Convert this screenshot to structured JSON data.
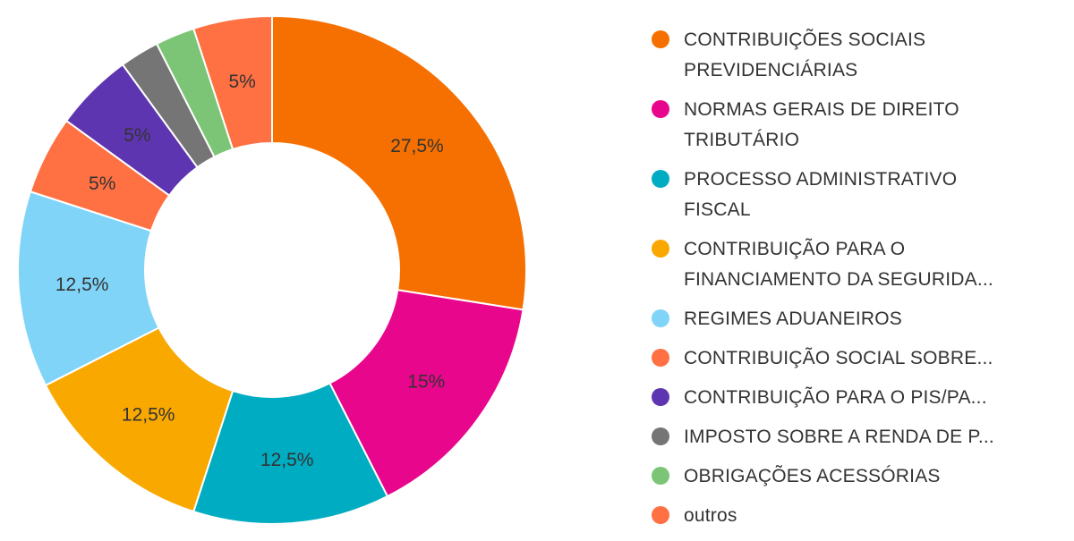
{
  "chart_data": {
    "type": "pie",
    "donut": true,
    "legend_position": "right",
    "series": [
      {
        "slices": [
          {
            "name": "CONTRIBUIÇÕES SOCIAIS PREVIDENCIÁRIAS",
            "legend_lines": [
              "CONTRIBUIÇÕES SOCIAIS",
              "PREVIDENCIÁRIAS"
            ],
            "value": 27.5,
            "label": "27,5%",
            "color": "#F57000"
          },
          {
            "name": "NORMAS GERAIS DE DIREITO TRIBUTÁRIO",
            "legend_lines": [
              "NORMAS GERAIS DE DIREITO",
              "TRIBUTÁRIO"
            ],
            "value": 15,
            "label": "15%",
            "color": "#E8078C"
          },
          {
            "name": "PROCESSO ADMINISTRATIVO FISCAL",
            "legend_lines": [
              "PROCESSO ADMINISTRATIVO",
              "FISCAL"
            ],
            "value": 12.5,
            "label": "12,5%",
            "color": "#00ACC1"
          },
          {
            "name": "CONTRIBUIÇÃO PARA O FINANCIAMENTO DA SEGURIDA...",
            "legend_lines": [
              "CONTRIBUIÇÃO PARA O",
              "FINANCIAMENTO DA SEGURIDA..."
            ],
            "value": 12.5,
            "label": "12,5%",
            "color": "#F9A800"
          },
          {
            "name": "REGIMES ADUANEIROS",
            "legend_lines": [
              "REGIMES ADUANEIROS"
            ],
            "value": 12.5,
            "label": "12,5%",
            "color": "#80D4F8"
          },
          {
            "name": "CONTRIBUIÇÃO SOCIAL SOBRE...",
            "legend_lines": [
              "CONTRIBUIÇÃO SOCIAL SOBRE..."
            ],
            "value": 5,
            "label": "5%",
            "color": "#FF7043"
          },
          {
            "name": "CONTRIBUIÇÃO PARA O PIS/PA...",
            "legend_lines": [
              "CONTRIBUIÇÃO PARA O PIS/PA..."
            ],
            "value": 5,
            "label": "5%",
            "color": "#5E35B1"
          },
          {
            "name": "IMPOSTO SOBRE A RENDA DE P...",
            "legend_lines": [
              "IMPOSTO SOBRE A RENDA DE P..."
            ],
            "value": 2.5,
            "label": "",
            "color": "#757575"
          },
          {
            "name": "OBRIGAÇÕES ACESSÓRIAS",
            "legend_lines": [
              "OBRIGAÇÕES ACESSÓRIAS"
            ],
            "value": 2.5,
            "label": "",
            "color": "#7CC576"
          },
          {
            "name": "outros",
            "legend_lines": [
              "outros"
            ],
            "value": 5,
            "label": "5%",
            "color": "#FF7043"
          }
        ]
      }
    ]
  }
}
